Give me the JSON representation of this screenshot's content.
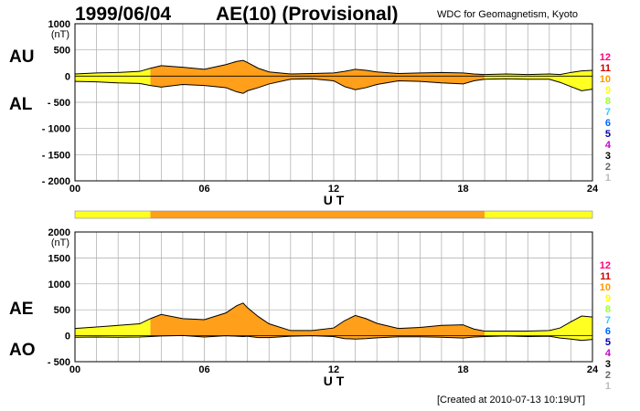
{
  "header": {
    "date": "1999/06/04",
    "title": "AE(10) (Provisional)",
    "credit": "WDC for Geomagnetism, Kyoto"
  },
  "footer": {
    "created": "[Created at 2010-07-13 10:19UT]"
  },
  "station_count_legend": {
    "labels": [
      "12",
      "11",
      "10",
      "9",
      "8",
      "7",
      "6",
      "5",
      "4",
      "3",
      "2",
      "1"
    ],
    "colors": [
      "#ff0080",
      "#cc0000",
      "#ff9900",
      "#ffff00",
      "#99ff33",
      "#33ccff",
      "#0066ff",
      "#0000aa",
      "#cc00cc",
      "#000000",
      "#666666",
      "#bbbbbb"
    ]
  },
  "colors": {
    "fill_10": "#ff9f1a",
    "fill_11": "#ffff22",
    "line": "#000000",
    "grid": "#aaaaaa"
  },
  "chart_data": [
    {
      "type": "area",
      "panel_labels": {
        "upper": "AU",
        "lower": "AL"
      },
      "y_unit": "(nT)",
      "ylim": [
        -2000,
        1000
      ],
      "y_ticks": [
        1000,
        500,
        0,
        -500,
        -1000,
        -1500,
        -2000
      ],
      "y_tick_labels": [
        "1000",
        "500",
        "0",
        "- 500",
        "- 1000",
        "- 1500",
        "- 2000"
      ],
      "xlim": [
        0,
        24
      ],
      "x_ticks": [
        0,
        6,
        12,
        18,
        24
      ],
      "x_tick_labels": [
        "00",
        "06",
        "12",
        "18",
        "24"
      ],
      "xlabel": "U T",
      "grid": true,
      "x": [
        0,
        1,
        2,
        3,
        3.5,
        4,
        5,
        6,
        7,
        7.5,
        7.8,
        8,
        8.5,
        9,
        10,
        11,
        12,
        12.5,
        13,
        13.5,
        14,
        15,
        16,
        17,
        18,
        18.5,
        19,
        20,
        21,
        22,
        22.5,
        23,
        23.5,
        24
      ],
      "series": [
        {
          "key": "AU",
          "values": [
            40,
            60,
            70,
            90,
            150,
            200,
            170,
            130,
            220,
            280,
            300,
            260,
            150,
            80,
            40,
            50,
            60,
            90,
            130,
            110,
            80,
            50,
            60,
            70,
            60,
            40,
            30,
            40,
            30,
            40,
            30,
            70,
            100,
            110
          ]
        },
        {
          "key": "AL",
          "values": [
            -100,
            -110,
            -130,
            -140,
            -180,
            -210,
            -160,
            -180,
            -220,
            -300,
            -330,
            -280,
            -220,
            -150,
            -60,
            -50,
            -90,
            -200,
            -260,
            -220,
            -160,
            -90,
            -100,
            -130,
            -150,
            -90,
            -60,
            -50,
            -60,
            -60,
            -120,
            -200,
            -280,
            -250
          ]
        }
      ]
    },
    {
      "type": "area",
      "panel_labels": {
        "upper": "AE",
        "lower": "AO"
      },
      "y_unit": "(nT)",
      "ylim": [
        -500,
        2000
      ],
      "y_ticks": [
        2000,
        1500,
        1000,
        500,
        0,
        -500
      ],
      "y_tick_labels": [
        "2000",
        "1500",
        "1000",
        "500",
        "0",
        "- 500"
      ],
      "xlim": [
        0,
        24
      ],
      "x_ticks": [
        0,
        6,
        12,
        18,
        24
      ],
      "x_tick_labels": [
        "00",
        "06",
        "12",
        "18",
        "24"
      ],
      "xlabel": "U T",
      "grid": true,
      "x": [
        0,
        1,
        2,
        3,
        3.5,
        4,
        5,
        6,
        7,
        7.5,
        7.8,
        8,
        8.5,
        9,
        10,
        11,
        12,
        12.5,
        13,
        13.5,
        14,
        15,
        16,
        17,
        18,
        18.5,
        19,
        20,
        21,
        22,
        22.5,
        23,
        23.5,
        24
      ],
      "series": [
        {
          "key": "AE",
          "values": [
            140,
            170,
            200,
            230,
            330,
            410,
            330,
            310,
            440,
            580,
            630,
            540,
            370,
            230,
            100,
            100,
            150,
            290,
            390,
            330,
            240,
            140,
            160,
            200,
            210,
            130,
            90,
            90,
            90,
            100,
            150,
            270,
            380,
            360
          ]
        },
        {
          "key": "AO",
          "values": [
            -30,
            -25,
            -30,
            -25,
            -15,
            -5,
            5,
            -25,
            0,
            -10,
            -15,
            -10,
            -35,
            -35,
            -10,
            0,
            -15,
            -55,
            -65,
            -55,
            -40,
            -20,
            -20,
            -30,
            -45,
            -25,
            -15,
            -5,
            -15,
            -10,
            -45,
            -65,
            -90,
            -70
          ]
        }
      ]
    }
  ],
  "station_count_bar": {
    "segments": [
      {
        "start": 0,
        "end": 3.5,
        "stations": 11
      },
      {
        "start": 3.5,
        "end": 19,
        "stations": 10
      },
      {
        "start": 19,
        "end": 24,
        "stations": 11
      }
    ]
  },
  "fill_bands": [
    {
      "start": 0,
      "end": 3.5,
      "stations": 11
    },
    {
      "start": 3.5,
      "end": 19,
      "stations": 10
    },
    {
      "start": 19,
      "end": 24,
      "stations": 11
    }
  ]
}
